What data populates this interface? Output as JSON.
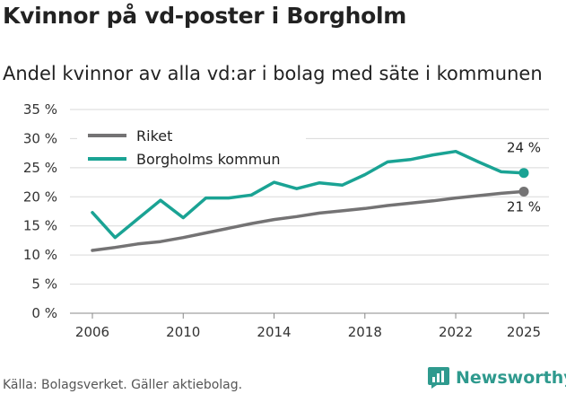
{
  "title": "Kvinnor på vd-poster i Borgholm",
  "subtitle": "Andel kvinnor av alla vd:ar i bolag med säte i kommunen",
  "source": "Källa: Bolagsverket. Gäller aktiebolag.",
  "brand": "Newsworthy",
  "colors": {
    "riket": "#747374",
    "kommun": "#1aa394",
    "grid": "#d9d9d9",
    "brand": "#2f9a8e"
  },
  "chart_data": {
    "type": "line",
    "title": "Kvinnor på vd-poster i Borgholm",
    "subtitle": "Andel kvinnor av alla vd:ar i bolag med säte i kommunen",
    "xlabel": "",
    "ylabel": "",
    "ylim": [
      0,
      35
    ],
    "yticks": [
      0,
      5,
      10,
      15,
      20,
      25,
      30,
      35
    ],
    "ytick_labels": [
      "0 %",
      "5 %",
      "10 %",
      "15 %",
      "20 %",
      "25 %",
      "30 %",
      "35 %"
    ],
    "xticks": [
      2006,
      2010,
      2014,
      2018,
      2022,
      2025
    ],
    "xtick_labels": [
      "2006",
      "2010",
      "2014",
      "2018",
      "2022",
      "2025"
    ],
    "grid": true,
    "legend_position": "top-left",
    "x": [
      2006,
      2007,
      2008,
      2009,
      2010,
      2011,
      2012,
      2013,
      2014,
      2015,
      2016,
      2017,
      2018,
      2019,
      2020,
      2021,
      2022,
      2023,
      2024,
      2025
    ],
    "series": [
      {
        "name": "Riket",
        "color": "#747374",
        "values": [
          10.8,
          11.3,
          11.9,
          12.3,
          13.0,
          13.8,
          14.6,
          15.4,
          16.1,
          16.6,
          17.2,
          17.6,
          18.0,
          18.5,
          18.9,
          19.3,
          19.8,
          20.2,
          20.6,
          20.9
        ],
        "end_label": "21 %"
      },
      {
        "name": "Borgholms kommun",
        "color": "#1aa394",
        "values": [
          17.3,
          13.0,
          16.2,
          19.4,
          16.4,
          19.8,
          19.8,
          20.3,
          22.5,
          21.4,
          22.4,
          22.0,
          23.8,
          26.0,
          26.4,
          27.2,
          27.8,
          26.0,
          24.3,
          24.1
        ],
        "end_label": "24 %"
      }
    ]
  }
}
